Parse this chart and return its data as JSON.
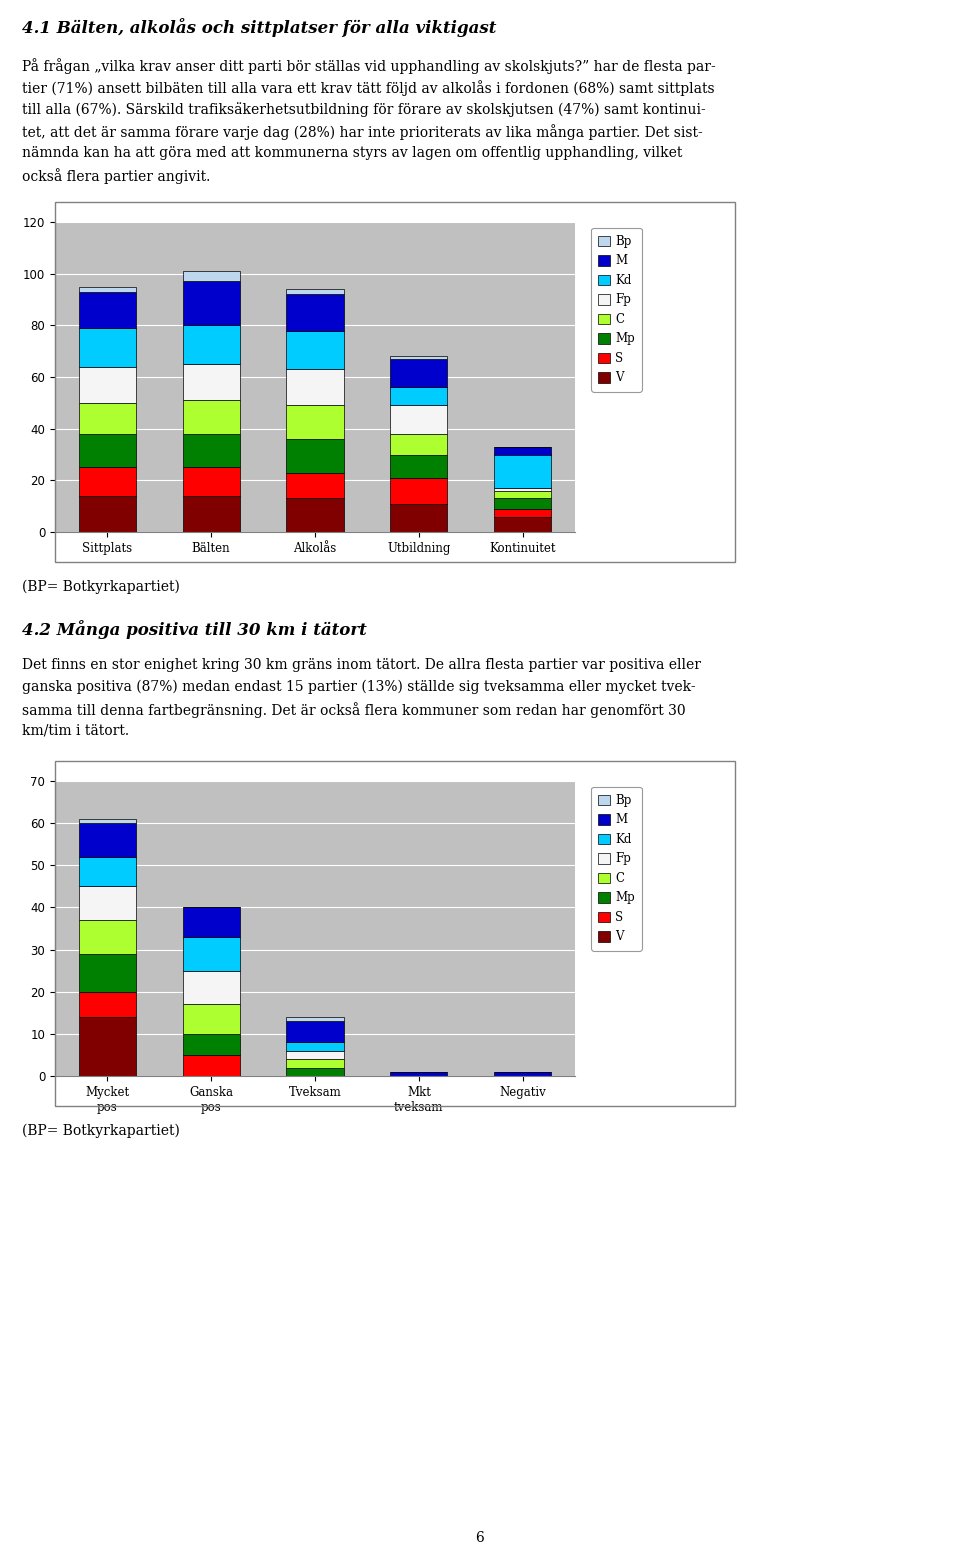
{
  "chart1": {
    "categories": [
      "Sittplats",
      "Bälten",
      "Alkolås",
      "Utbildning",
      "Kontinuitet"
    ],
    "ylim": [
      0,
      120
    ],
    "yticks": [
      0,
      20,
      40,
      60,
      80,
      100,
      120
    ],
    "series": {
      "V": [
        14,
        14,
        13,
        11,
        6
      ],
      "S": [
        11,
        11,
        10,
        10,
        3
      ],
      "Mp": [
        13,
        13,
        13,
        9,
        4
      ],
      "C": [
        12,
        13,
        13,
        8,
        3
      ],
      "Fp": [
        14,
        14,
        14,
        11,
        1
      ],
      "Kd": [
        15,
        15,
        15,
        7,
        13
      ],
      "M": [
        14,
        17,
        14,
        11,
        3
      ],
      "Bp": [
        2,
        4,
        2,
        1,
        0
      ]
    },
    "colors": {
      "V": "#800000",
      "S": "#FF0000",
      "Mp": "#008000",
      "C": "#ADFF2F",
      "Fp": "#F5F5F5",
      "Kd": "#00CCFF",
      "M": "#0000CD",
      "Bp": "#BDD7EE"
    }
  },
  "chart2": {
    "categories": [
      "Mycket\npos",
      "Ganska\npos",
      "Tveksam",
      "Mkt\ntveksam",
      "Negativ"
    ],
    "ylim": [
      0,
      70
    ],
    "yticks": [
      0,
      10,
      20,
      30,
      40,
      50,
      60,
      70
    ],
    "series": {
      "V": [
        14,
        0,
        0,
        0,
        0
      ],
      "S": [
        6,
        5,
        0,
        0,
        0
      ],
      "Mp": [
        9,
        5,
        2,
        0,
        0
      ],
      "C": [
        8,
        7,
        2,
        0,
        0
      ],
      "Fp": [
        8,
        8,
        2,
        0,
        0
      ],
      "Kd": [
        7,
        8,
        2,
        0,
        0
      ],
      "M": [
        8,
        7,
        5,
        1,
        1
      ],
      "Bp": [
        1,
        0,
        1,
        0,
        0
      ]
    },
    "colors": {
      "V": "#800000",
      "S": "#FF0000",
      "Mp": "#008000",
      "C": "#ADFF2F",
      "Fp": "#F5F5F5",
      "Kd": "#00CCFF",
      "M": "#0000CD",
      "Bp": "#BDD7EE"
    }
  },
  "title1": "4.1 Bälten, alkolås och sittplatser för alla viktigast",
  "text1_lines": [
    "På frågan „vilka krav anser ditt parti bör ställas vid upphandling av skolskjuts?” har de flesta par-",
    "tier (71%) ansett bilbäten till alla vara ett krav tätt följd av alkolås i fordonen (68%) samt sittplats",
    "till alla (67%). Särskild trafiksäkerhetsutbildning för förare av skolskjutsen (47%) samt kontinui-",
    "tet, att det är samma förare varje dag (28%) har inte prioriterats av lika många partier. Det sist-",
    "nämnda kan ha att göra med att kommunerna styrs av lagen om offentlig upphandling, vilket",
    "också flera partier angivit."
  ],
  "bp_note": "(BP= Botkyrkapartiet)",
  "title2": "4.2 Många positiva till 30 km i tätort",
  "text2_lines": [
    "Det finns en stor enighet kring 30 km gräns inom tätort. De allra flesta partier var positiva eller",
    "ganska positiva (87%) medan endast 15 partier (13%) ställde sig tveksamma eller mycket tvek-",
    "samma till denna fartbegränsning. Det är också flera kommuner som redan har genomfört 30",
    "km/tim i tätort."
  ],
  "page_num": "6",
  "legend_order": [
    "Bp",
    "M",
    "Kd",
    "Fp",
    "C",
    "Mp",
    "S",
    "V"
  ],
  "chart_bg": "#C0C0C0",
  "fig_bg": "#FFFFFF",
  "chart_border": "#808080"
}
